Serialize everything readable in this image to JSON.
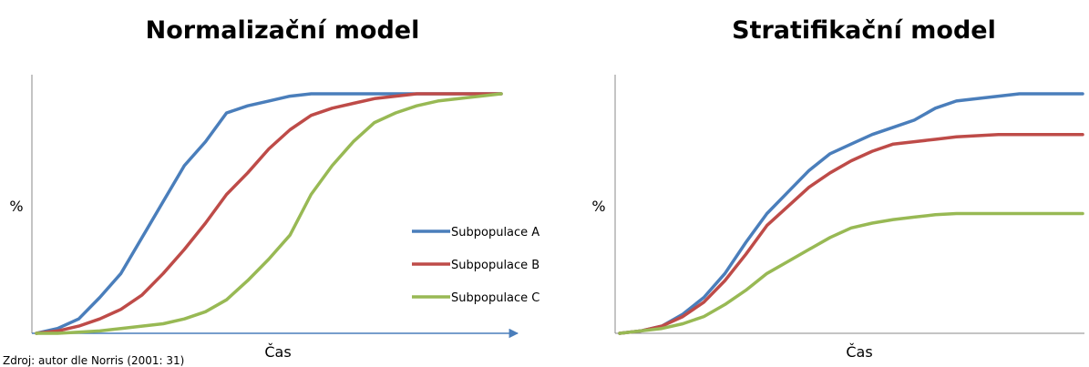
{
  "colors": {
    "subpopulace_a": "#4a7ebb",
    "subpopulace_b": "#be4b48",
    "subpopulace_c": "#98b954",
    "axis": "#4a7ebb"
  },
  "source_note": "Zdroj: autor dle Norris (2001: 31)",
  "chart_data": [
    {
      "type": "line",
      "title": "Normalizační model",
      "xlabel": "Čas",
      "ylabel": "%",
      "ylim": [
        0,
        100
      ],
      "xlim": [
        0,
        22
      ],
      "x_axis_arrow": true,
      "grid": false,
      "legend": {
        "placement": "right",
        "entries": [
          "Subpopulace A",
          "Subpopulace B",
          "Subpopulace C"
        ]
      },
      "series": [
        {
          "name": "Subpopulace A",
          "color": "#4a7ebb",
          "x": [
            0,
            1,
            2,
            3,
            4,
            5,
            6,
            7,
            8,
            9,
            10,
            11,
            12,
            13,
            14,
            15,
            16,
            17,
            18,
            19,
            20,
            21,
            22
          ],
          "values": [
            0,
            2,
            6,
            15,
            25,
            40,
            55,
            70,
            80,
            92,
            95,
            97,
            99,
            100,
            100,
            100,
            100,
            100,
            100,
            100,
            100,
            100,
            100
          ]
        },
        {
          "name": "Subpopulace B",
          "color": "#be4b48",
          "x": [
            0,
            1,
            2,
            3,
            4,
            5,
            6,
            7,
            8,
            9,
            10,
            11,
            12,
            13,
            14,
            15,
            16,
            17,
            18,
            19,
            20,
            21,
            22
          ],
          "values": [
            0,
            1,
            3,
            6,
            10,
            16,
            25,
            35,
            46,
            58,
            67,
            77,
            85,
            91,
            94,
            96,
            98,
            99,
            100,
            100,
            100,
            100,
            100
          ]
        },
        {
          "name": "Subpopulace C",
          "color": "#98b954",
          "x": [
            0,
            1,
            2,
            3,
            4,
            5,
            6,
            7,
            8,
            9,
            10,
            11,
            12,
            13,
            14,
            15,
            16,
            17,
            18,
            19,
            20,
            21,
            22
          ],
          "values": [
            0,
            0,
            0.5,
            1,
            2,
            3,
            4,
            6,
            9,
            14,
            22,
            31,
            41,
            58,
            70,
            80,
            88,
            92,
            95,
            97,
            98,
            99,
            100
          ]
        }
      ]
    },
    {
      "type": "line",
      "title": "Stratifikační model",
      "xlabel": "Čas",
      "ylabel": "%",
      "ylim": [
        0,
        100
      ],
      "xlim": [
        0,
        22
      ],
      "x_axis_arrow": false,
      "grid": false,
      "series": [
        {
          "name": "Subpopulace A",
          "color": "#4a7ebb",
          "x": [
            0,
            1,
            2,
            3,
            4,
            5,
            6,
            7,
            8,
            9,
            10,
            11,
            12,
            13,
            14,
            15,
            16,
            17,
            18,
            19,
            20,
            21,
            22
          ],
          "values": [
            0,
            1,
            3,
            8,
            15,
            25,
            38,
            50,
            59,
            68,
            75,
            79,
            83,
            86,
            89,
            94,
            97,
            98,
            99,
            100,
            100,
            100,
            100
          ]
        },
        {
          "name": "Subpopulace B",
          "color": "#be4b48",
          "x": [
            0,
            1,
            2,
            3,
            4,
            5,
            6,
            7,
            8,
            9,
            10,
            11,
            12,
            13,
            14,
            15,
            16,
            17,
            18,
            19,
            20,
            21,
            22
          ],
          "values": [
            0,
            1,
            3,
            7,
            13,
            22,
            33,
            45,
            53,
            61,
            67,
            72,
            76,
            79,
            80,
            81,
            82,
            82.5,
            83,
            83,
            83,
            83,
            83
          ]
        },
        {
          "name": "Subpopulace C",
          "color": "#98b954",
          "x": [
            0,
            1,
            2,
            3,
            4,
            5,
            6,
            7,
            8,
            9,
            10,
            11,
            12,
            13,
            14,
            15,
            16,
            17,
            18,
            19,
            20,
            21,
            22
          ],
          "values": [
            0,
            1,
            2,
            4,
            7,
            12,
            18,
            25,
            30,
            35,
            40,
            44,
            46,
            47.5,
            48.5,
            49.5,
            50,
            50,
            50,
            50,
            50,
            50,
            50
          ]
        }
      ]
    }
  ]
}
